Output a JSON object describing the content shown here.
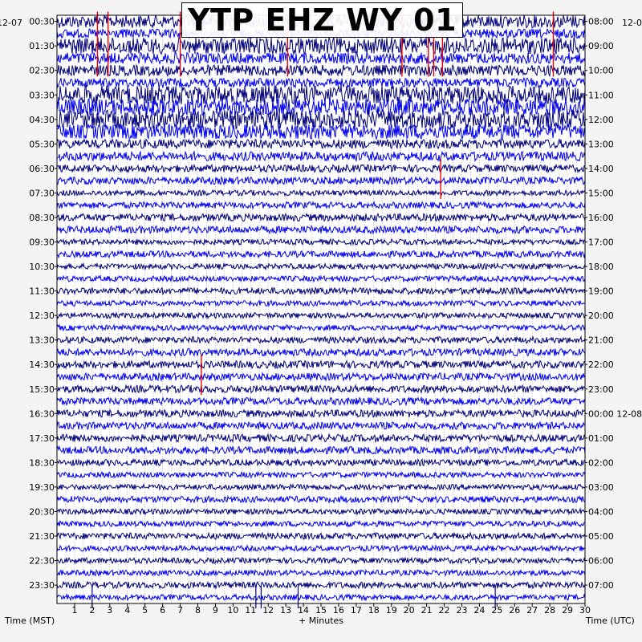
{
  "title": "YTP EHZ WY 01",
  "date_left": "12-07",
  "date_right": "12-0",
  "xlabel": "+ Minutes",
  "left_axis_label": "Time (MST)",
  "right_axis_label": "Time (UTC)",
  "colors": {
    "trace_a": "#00007a",
    "trace_b": "#0000ee",
    "event": "#ee0000",
    "grid": "#999999",
    "background": "#ffffff"
  },
  "chart_data": {
    "type": "line",
    "title": "YTP EHZ WY 01",
    "xlabel": "+ Minutes",
    "xlim": [
      0,
      30
    ],
    "x_ticks": [
      1,
      2,
      3,
      4,
      5,
      6,
      7,
      8,
      9,
      10,
      11,
      12,
      13,
      14,
      15,
      16,
      17,
      18,
      19,
      20,
      21,
      22,
      23,
      24,
      25,
      26,
      27,
      28,
      29,
      30
    ],
    "grid": true,
    "row_count": 48,
    "left_ticks": [
      "00:30",
      "01:30",
      "02:30",
      "03:30",
      "04:30",
      "05:30",
      "06:30",
      "07:30",
      "08:30",
      "09:30",
      "10:30",
      "11:30",
      "12:30",
      "13:30",
      "14:30",
      "15:30",
      "16:30",
      "17:30",
      "18:30",
      "19:30",
      "20:30",
      "21:30",
      "22:30",
      "23:30"
    ],
    "right_ticks": [
      "08:00",
      "09:00",
      "10:00",
      "11:00",
      "12:00",
      "13:00",
      "14:00",
      "15:00",
      "16:00",
      "17:00",
      "18:00",
      "19:00",
      "20:00",
      "21:00",
      "22:00",
      "23:00",
      "00:00 12-08",
      "01:00",
      "02:00",
      "03:00",
      "04:00",
      "05:00",
      "06:00",
      "07:00"
    ],
    "amplitude_by_row": [
      0.7,
      0.5,
      0.9,
      0.6,
      0.6,
      0.5,
      1.0,
      0.9,
      1.0,
      0.8,
      0.5,
      0.5,
      0.4,
      0.4,
      0.3,
      0.35,
      0.4,
      0.4,
      0.3,
      0.35,
      0.3,
      0.3,
      0.35,
      0.3,
      0.3,
      0.3,
      0.35,
      0.4,
      0.4,
      0.4,
      0.4,
      0.4,
      0.4,
      0.4,
      0.4,
      0.4,
      0.35,
      0.3,
      0.3,
      0.35,
      0.3,
      0.3,
      0.35,
      0.3,
      0.3,
      0.3,
      0.35,
      0.3
    ],
    "events": [
      {
        "row": 0,
        "minute": 2.3
      },
      {
        "row": 0,
        "minute": 2.9
      },
      {
        "row": 0,
        "minute": 7.0
      },
      {
        "row": 0,
        "minute": 13.1
      },
      {
        "row": 0,
        "minute": 19.6
      },
      {
        "row": 0,
        "minute": 21.1
      },
      {
        "row": 0,
        "minute": 21.4
      },
      {
        "row": 0,
        "minute": 21.9
      },
      {
        "row": 0,
        "minute": 28.2
      },
      {
        "row": 12,
        "minute": 21.8
      },
      {
        "row": 28,
        "minute": 8.2
      },
      {
        "row": 47,
        "minute": 2.0
      },
      {
        "row": 47,
        "minute": 11.3
      },
      {
        "row": 47,
        "minute": 11.6
      },
      {
        "row": 47,
        "minute": 13.7
      },
      {
        "row": 47,
        "minute": 24.9
      }
    ]
  }
}
